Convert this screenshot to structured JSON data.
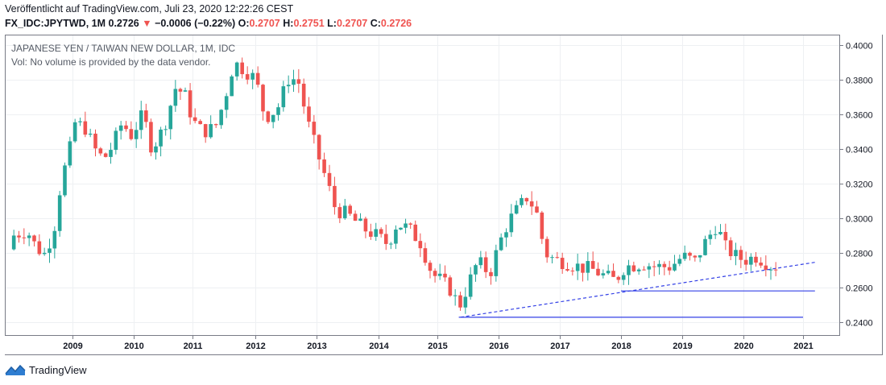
{
  "header": {
    "published": "Veröffentlicht auf TradingView.com, Juli 23, 2020 12:22:26 CEST",
    "symbol": "FX_IDC:JPYTWD, 1M",
    "last": "0.2726",
    "arrow": "▼",
    "change": "−0.0006 (−0.22%)",
    "o_label": "O:",
    "o_value": "0.2707",
    "h_label": "H:",
    "h_value": "0.2751",
    "l_label": "L:",
    "l_value": "0.2707",
    "c_label": "C:",
    "c_value": "0.2726"
  },
  "legend": {
    "title": "JAPANESE YEN / TAIWAN NEW DOLLAR, 1M, IDC",
    "volume_note": "Vol: No volume is provided by the data vendor."
  },
  "footer": {
    "brand": "TradingView"
  },
  "colors": {
    "up": "#26a69a",
    "down": "#ef5350",
    "line": "#3340e6",
    "grid": "#eef0f3",
    "border": "#787b86"
  },
  "chart_data": {
    "type": "candlestick",
    "interval": "1M",
    "y_ticks": [
      "0.4000",
      "0.3800",
      "0.3600",
      "0.3400",
      "0.3200",
      "0.3000",
      "0.2800",
      "0.2600",
      "0.2400"
    ],
    "x_ticks": [
      "2009",
      "2010",
      "2011",
      "2012",
      "2013",
      "2014",
      "2015",
      "2016",
      "2017",
      "2018",
      "2019",
      "2020",
      "2021"
    ],
    "ylim": [
      0.2325,
      0.4055
    ],
    "xlim": [
      2008.0,
      2022.0
    ],
    "year_anchors": [
      2009,
      2010,
      2011,
      2012,
      2013,
      2014,
      2015,
      2016,
      2017,
      2018,
      2019,
      2020,
      2021
    ],
    "anchors": [
      [
        2008.0,
        0.282
      ],
      [
        2008.08,
        0.29
      ],
      [
        2008.3,
        0.293
      ],
      [
        2008.45,
        0.283
      ],
      [
        2008.6,
        0.279
      ],
      [
        2008.75,
        0.296
      ],
      [
        2008.85,
        0.32
      ],
      [
        2009.0,
        0.34
      ],
      [
        2009.08,
        0.355
      ],
      [
        2009.25,
        0.352
      ],
      [
        2009.4,
        0.34
      ],
      [
        2009.55,
        0.334
      ],
      [
        2009.7,
        0.342
      ],
      [
        2009.85,
        0.355
      ],
      [
        2010.0,
        0.348
      ],
      [
        2010.2,
        0.36
      ],
      [
        2010.35,
        0.34
      ],
      [
        2010.55,
        0.352
      ],
      [
        2010.75,
        0.375
      ],
      [
        2010.9,
        0.372
      ],
      [
        2011.05,
        0.356
      ],
      [
        2011.2,
        0.35
      ],
      [
        2011.4,
        0.352
      ],
      [
        2011.55,
        0.368
      ],
      [
        2011.7,
        0.39
      ],
      [
        2011.9,
        0.385
      ],
      [
        2012.05,
        0.38
      ],
      [
        2012.2,
        0.358
      ],
      [
        2012.4,
        0.363
      ],
      [
        2012.6,
        0.382
      ],
      [
        2012.75,
        0.378
      ],
      [
        2012.9,
        0.355
      ],
      [
        2013.05,
        0.338
      ],
      [
        2013.2,
        0.322
      ],
      [
        2013.35,
        0.305
      ],
      [
        2013.55,
        0.302
      ],
      [
        2013.8,
        0.294
      ],
      [
        2014.0,
        0.29
      ],
      [
        2014.2,
        0.285
      ],
      [
        2014.35,
        0.297
      ],
      [
        2014.55,
        0.294
      ],
      [
        2014.75,
        0.286
      ],
      [
        2014.95,
        0.268
      ],
      [
        2015.1,
        0.264
      ],
      [
        2015.25,
        0.259
      ],
      [
        2015.4,
        0.249
      ],
      [
        2015.55,
        0.262
      ],
      [
        2015.7,
        0.275
      ],
      [
        2015.9,
        0.268
      ],
      [
        2016.05,
        0.285
      ],
      [
        2016.2,
        0.298
      ],
      [
        2016.35,
        0.305
      ],
      [
        2016.5,
        0.312
      ],
      [
        2016.65,
        0.305
      ],
      [
        2016.8,
        0.28
      ],
      [
        2016.95,
        0.276
      ],
      [
        2017.1,
        0.275
      ],
      [
        2017.35,
        0.272
      ],
      [
        2017.6,
        0.27
      ],
      [
        2017.8,
        0.266
      ],
      [
        2017.95,
        0.264
      ],
      [
        2018.1,
        0.272
      ],
      [
        2018.4,
        0.274
      ],
      [
        2018.6,
        0.272
      ],
      [
        2018.85,
        0.272
      ],
      [
        2019.05,
        0.278
      ],
      [
        2019.25,
        0.275
      ],
      [
        2019.4,
        0.285
      ],
      [
        2019.6,
        0.296
      ],
      [
        2019.75,
        0.283
      ],
      [
        2019.95,
        0.277
      ],
      [
        2020.1,
        0.276
      ],
      [
        2020.25,
        0.278
      ],
      [
        2020.4,
        0.275
      ],
      [
        2020.5,
        0.2726
      ]
    ],
    "trendlines": [
      {
        "style": "dashed",
        "x1": 2015.38,
        "y1": 0.2428,
        "x2": 2021.2,
        "y2": 0.2745
      },
      {
        "style": "solid",
        "x1": 2015.35,
        "y1": 0.2428,
        "x2": 2021.0,
        "y2": 0.2428
      },
      {
        "style": "solid",
        "x1": 2018.0,
        "y1": 0.258,
        "x2": 2021.2,
        "y2": 0.258
      }
    ]
  }
}
